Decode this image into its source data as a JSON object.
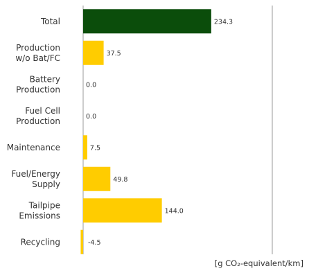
{
  "chart_data": {
    "type": "bar",
    "orientation": "horizontal",
    "categories": [
      [
        "Total"
      ],
      [
        "Production",
        "w/o Bat/FC"
      ],
      [
        "Battery",
        "Production"
      ],
      [
        "Fuel Cell",
        "Production"
      ],
      [
        "Maintenance"
      ],
      [
        "Fuel/Energy",
        "Supply"
      ],
      [
        "Tailpipe",
        "Emissions"
      ],
      [
        "Recycling"
      ]
    ],
    "values": [
      234.3,
      37.5,
      0.0,
      0.0,
      7.5,
      49.8,
      144.0,
      -4.5
    ],
    "value_labels": [
      "234.3",
      "37.5",
      "0.0",
      "0.0",
      "7.5",
      "49.8",
      "144.0",
      "-4.5"
    ],
    "colors": [
      "#0b4d0b",
      "#ffcc00",
      "#ffcc00",
      "#ffcc00",
      "#ffcc00",
      "#ffcc00",
      "#ffcc00",
      "#ffcc00"
    ],
    "xlim": [
      0,
      346
    ],
    "reference_line": 346,
    "xlabel": "[g CO₂-equivalent/km]",
    "grid": false
  }
}
